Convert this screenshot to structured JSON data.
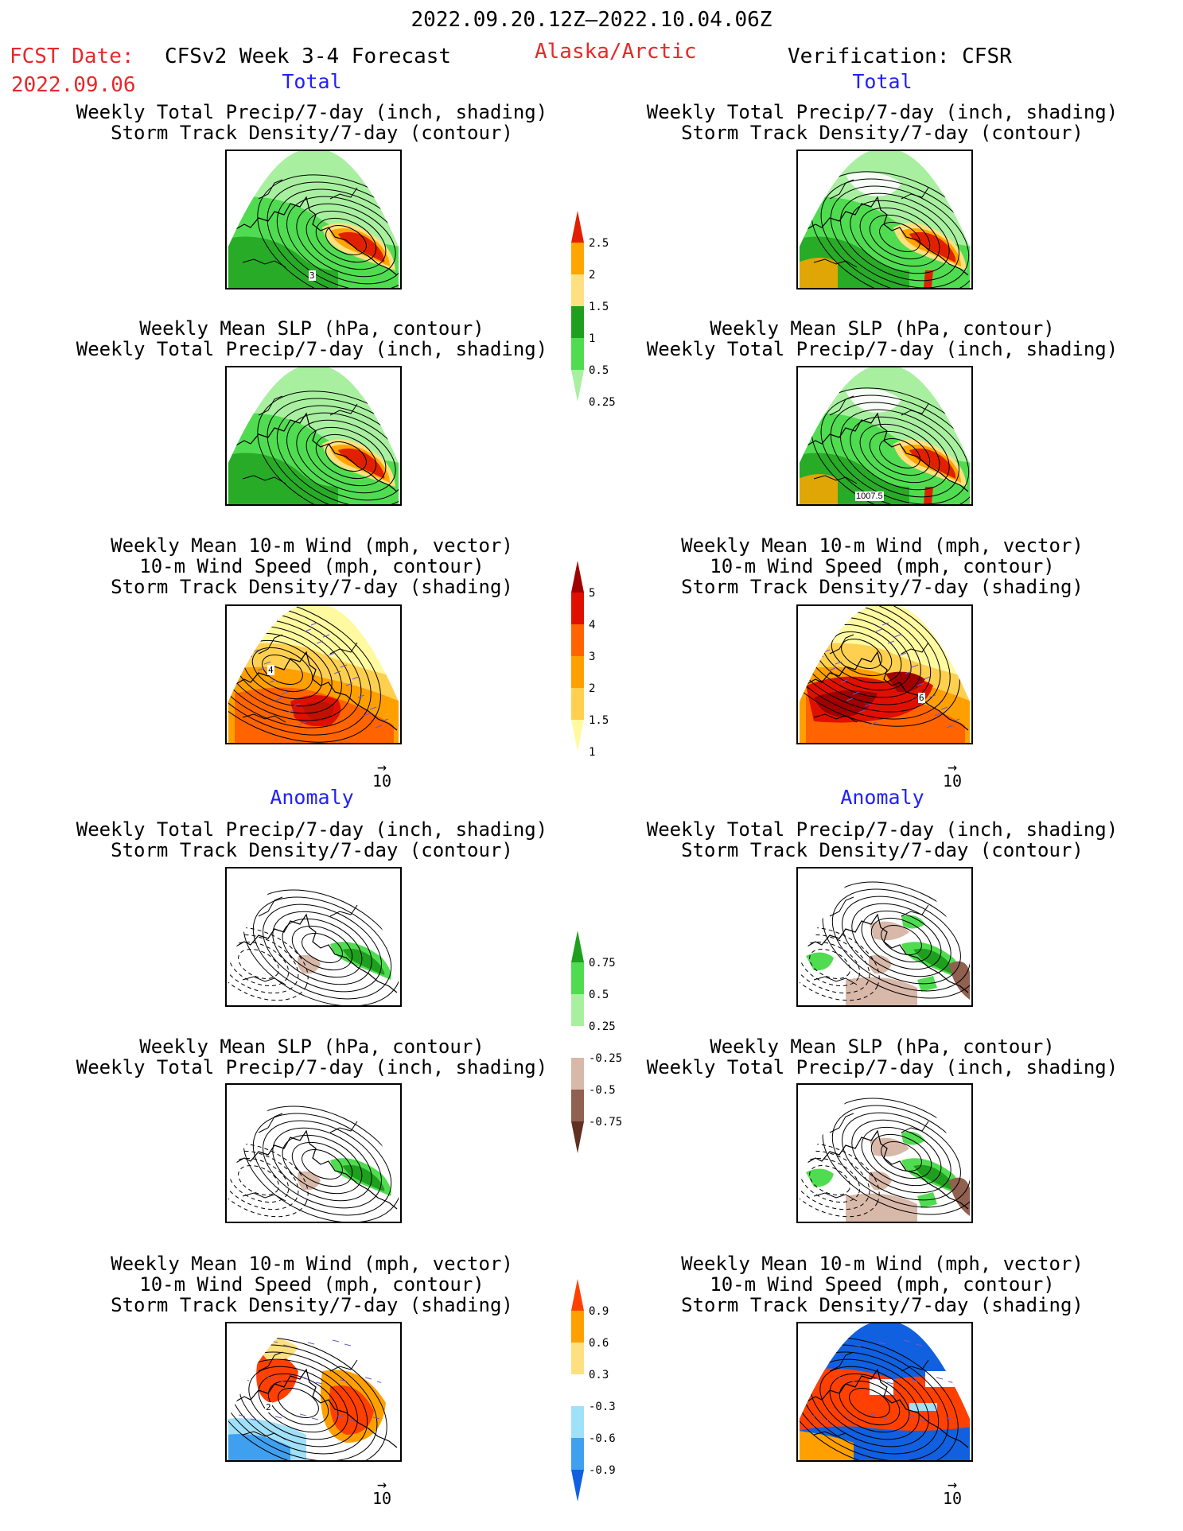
{
  "header": {
    "date_range": "2022.09.20.12Z–2022.10.04.06Z",
    "fcst_label": "FCST Date:",
    "fcst_date": "2022.09.06",
    "model": "CFSv2 Week 3-4 Forecast",
    "region": "Alaska/Arctic",
    "verification": "Verification: CFSR"
  },
  "sections": {
    "total_left": "Total",
    "total_right": "Total",
    "anomaly_left": "Anomaly",
    "anomaly_right": "Anomaly"
  },
  "titles": {
    "precip_storm_1": "Weekly Total Precip/7-day (inch, shading)",
    "precip_storm_2": "Storm Track Density/7-day (contour)",
    "slp_precip_1": "Weekly Mean SLP (hPa, contour)",
    "slp_precip_2": "Weekly Total Precip/7-day (inch, shading)",
    "wind_1": "Weekly Mean 10-m Wind (mph, vector)",
    "wind_2": "10-m Wind Speed (mph, contour)",
    "wind_3": "Storm Track Density/7-day (shading)"
  },
  "vector_ref": "10",
  "panel_labels": {
    "p1_left": "3",
    "p2_right": "1007.5",
    "p3_left": "4",
    "p3_right": "6",
    "p6_left": "2"
  },
  "colorbars": {
    "precip_total": {
      "colors": [
        "#a8f0a0",
        "#50dc50",
        "#1ea01e",
        "#ffe080",
        "#ffa500",
        "#e02000"
      ],
      "labels": [
        "0.25",
        "0.5",
        "1",
        "1.5",
        "2",
        "2.5"
      ]
    },
    "storm_total": {
      "colors": [
        "#fffaa0",
        "#ffd050",
        "#ffa000",
        "#ff6400",
        "#e01000",
        "#a00000"
      ],
      "labels": [
        "1",
        "1.5",
        "2",
        "3",
        "4",
        "5"
      ]
    },
    "precip_anom": {
      "colors": [
        "#603020",
        "#906050",
        "#d8b8a8",
        "#ffffff",
        "#a8f0a0",
        "#50dc50",
        "#1ea01e"
      ],
      "labels": [
        "-0.75",
        "-0.5",
        "-0.25",
        "0.25",
        "0.5",
        "0.75"
      ]
    },
    "storm_anom": {
      "colors": [
        "#1060e0",
        "#40a0f0",
        "#a0e0f8",
        "#ffffff",
        "#ffe080",
        "#ffa000",
        "#ff4000"
      ],
      "labels": [
        "-0.9",
        "-0.6",
        "-0.3",
        "0.3",
        "0.6",
        "0.9"
      ]
    }
  }
}
